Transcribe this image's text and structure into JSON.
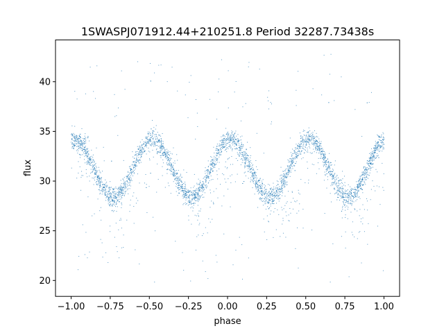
{
  "chart_data": {
    "type": "scatter",
    "title": "1SWASPJ071912.44+210251.8 Period 32287.73438s",
    "xlabel": "phase",
    "ylabel": "flux",
    "xlim": [
      -1.1,
      1.1
    ],
    "ylim": [
      18.4,
      44.2
    ],
    "x_ticks": [
      -1.0,
      -0.75,
      -0.5,
      -0.25,
      0.0,
      0.25,
      0.5,
      0.75,
      1.0
    ],
    "x_tick_labels": [
      "−1.00",
      "−0.75",
      "−0.50",
      "−0.25",
      "0.00",
      "0.25",
      "0.50",
      "0.75",
      "1.00"
    ],
    "y_ticks": [
      20,
      25,
      30,
      35,
      40
    ],
    "y_tick_labels": [
      "20",
      "25",
      "30",
      "35",
      "40"
    ],
    "grid": false,
    "marker_color": "#1f77b4",
    "series": [
      {
        "name": "",
        "model": "sinusoid",
        "mean_flux": 31.3,
        "amplitude": 2.9,
        "cycles_per_unit_phase": 2,
        "phase_of_maximum": 0.02,
        "x_range": [
          -1.0,
          1.0
        ],
        "typical_scatter": 0.5,
        "secondary_branch_offset": -3.5,
        "outlier_flux_range": [
          19.8,
          43.0
        ]
      }
    ]
  }
}
